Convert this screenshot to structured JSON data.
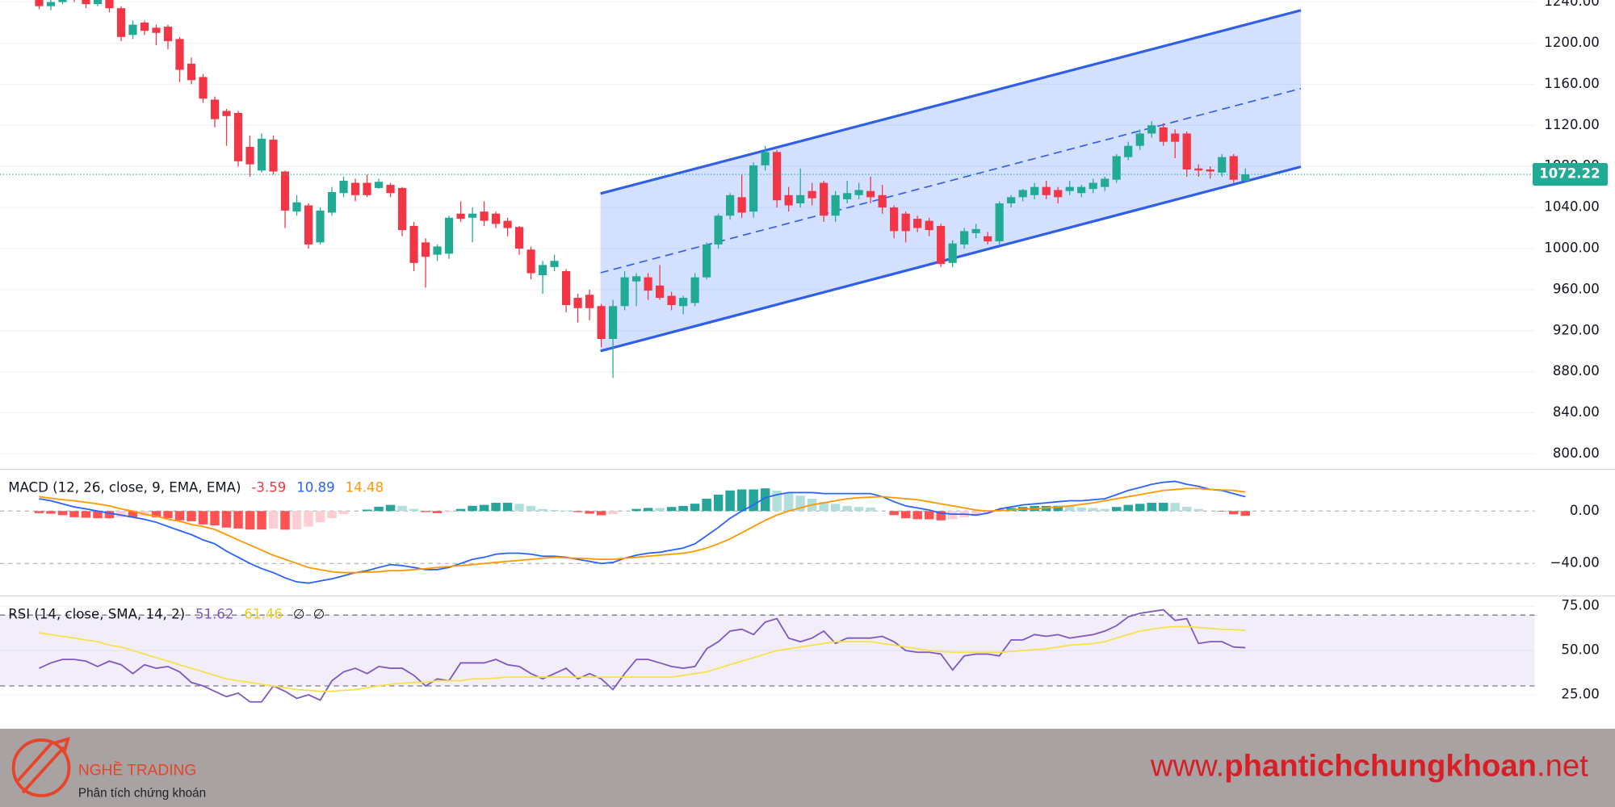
{
  "chart_data": [
    {
      "type": "candlestick",
      "up_color": "#22ab94",
      "down_color": "#f23645",
      "grid": true,
      "ylim": [
        786,
        1242
      ],
      "yticks": [
        {
          "value": 800,
          "label": "800.00"
        },
        {
          "value": 840,
          "label": "840.00"
        },
        {
          "value": 880,
          "label": "880.00"
        },
        {
          "value": 920,
          "label": "920.00"
        },
        {
          "value": 960,
          "label": "960.00"
        },
        {
          "value": 1000,
          "label": "1000.00"
        },
        {
          "value": 1040,
          "label": "1040.00"
        },
        {
          "value": 1080,
          "label": "1080.00"
        },
        {
          "value": 1120,
          "label": "1120.00"
        },
        {
          "value": 1160,
          "label": "1160.00"
        },
        {
          "value": 1200,
          "label": "1200.00"
        },
        {
          "value": 1240,
          "label": "1240.00"
        }
      ],
      "open": [
        1242,
        1236,
        1240,
        1250,
        1242,
        1238,
        1242,
        1234,
        1208,
        1220,
        1215,
        1216,
        1204,
        1180,
        1167,
        1145,
        1134,
        1132,
        1099,
        1076,
        1106,
        1075,
        1036,
        1042,
        1006,
        1035,
        1054,
        1064,
        1064,
        1059,
        1062,
        1059,
        1022,
        1006,
        994,
        995,
        1034,
        1030,
        1036,
        1034,
        1027,
        1021,
        999,
        974,
        982,
        978,
        952,
        955,
        944,
        912,
        944,
        968,
        972,
        964,
        954,
        944,
        947,
        972,
        1004,
        1032,
        1050,
        1036,
        1081,
        1094,
        1052,
        1044,
        1056,
        1064,
        1032,
        1048,
        1052,
        1056,
        1052,
        1040,
        1034,
        1029,
        1027,
        1022,
        986,
        1004,
        1015,
        1012,
        1007,
        1044,
        1050,
        1052,
        1060,
        1057,
        1056,
        1054,
        1058,
        1060,
        1067,
        1089,
        1100,
        1112,
        1118,
        1112,
        1112,
        1078,
        1077,
        1074,
        1090,
        1066
      ],
      "high": [
        1245,
        1244,
        1255,
        1252,
        1245,
        1245,
        1244,
        1236,
        1222,
        1222,
        1218,
        1218,
        1206,
        1186,
        1170,
        1148,
        1136,
        1134,
        1110,
        1112,
        1110,
        1076,
        1052,
        1044,
        1040,
        1060,
        1070,
        1068,
        1072,
        1068,
        1064,
        1060,
        1026,
        1010,
        1004,
        1032,
        1046,
        1040,
        1046,
        1036,
        1030,
        1022,
        1002,
        988,
        994,
        980,
        956,
        960,
        946,
        950,
        978,
        976,
        976,
        984,
        958,
        954,
        976,
        1006,
        1034,
        1054,
        1072,
        1084,
        1100,
        1096,
        1060,
        1078,
        1064,
        1066,
        1056,
        1066,
        1064,
        1070,
        1062,
        1042,
        1036,
        1032,
        1030,
        1024,
        1008,
        1020,
        1024,
        1016,
        1046,
        1052,
        1058,
        1064,
        1066,
        1060,
        1066,
        1062,
        1068,
        1070,
        1092,
        1104,
        1116,
        1124,
        1122,
        1116,
        1114,
        1082,
        1080,
        1092,
        1092,
        1078
      ],
      "low": [
        1233,
        1232,
        1238,
        1240,
        1234,
        1236,
        1230,
        1202,
        1204,
        1208,
        1198,
        1194,
        1162,
        1160,
        1142,
        1118,
        1100,
        1080,
        1070,
        1074,
        1072,
        1020,
        1032,
        1000,
        1004,
        1032,
        1050,
        1046,
        1050,
        1058,
        1050,
        1012,
        978,
        962,
        988,
        990,
        1026,
        1006,
        1022,
        1020,
        1012,
        994,
        970,
        956,
        978,
        938,
        928,
        930,
        904,
        874,
        940,
        944,
        950,
        950,
        940,
        936,
        944,
        970,
        1000,
        1028,
        1030,
        1030,
        1076,
        1040,
        1036,
        1040,
        1042,
        1026,
        1026,
        1044,
        1048,
        1044,
        1034,
        1010,
        1006,
        1016,
        1012,
        982,
        982,
        1000,
        1010,
        1004,
        1004,
        1040,
        1046,
        1048,
        1048,
        1044,
        1052,
        1050,
        1054,
        1056,
        1064,
        1086,
        1096,
        1108,
        1100,
        1088,
        1070,
        1070,
        1068,
        1070,
        1064,
        1064
      ],
      "close": [
        1236,
        1240,
        1250,
        1244,
        1238,
        1242,
        1234,
        1206,
        1218,
        1212,
        1210,
        1202,
        1174,
        1164,
        1146,
        1126,
        1129,
        1085,
        1082,
        1107,
        1075,
        1037,
        1045,
        1004,
        1037,
        1055,
        1066,
        1052,
        1052,
        1065,
        1054,
        1018,
        986,
        992,
        1002,
        1030,
        1029,
        1034,
        1027,
        1024,
        1020,
        1000,
        976,
        984,
        988,
        945,
        942,
        942,
        912,
        944,
        972,
        973,
        959,
        952,
        945,
        952,
        972,
        1004,
        1032,
        1052,
        1035,
        1081,
        1094,
        1047,
        1042,
        1052,
        1049,
        1032,
        1052,
        1054,
        1057,
        1050,
        1040,
        1017,
        1017,
        1020,
        1018,
        985,
        1005,
        1017,
        1019,
        1007,
        1044,
        1050,
        1057,
        1060,
        1052,
        1050,
        1060,
        1060,
        1064,
        1068,
        1090,
        1100,
        1112,
        1120,
        1104,
        1104,
        1077,
        1076,
        1075,
        1089,
        1067,
        1072.22
      ]
    },
    {
      "type": "indicator",
      "title": "MACD (12, 26, close, 9, EMA, EMA)",
      "ylim": [
        -64,
        31
      ],
      "yticks": [
        {
          "value": 0,
          "label": "0.00"
        },
        {
          "value": -40,
          "label": "−40.00"
        }
      ],
      "series": [
        {
          "name": "Histogram",
          "type": "histogram",
          "color": "#f23645",
          "colors": {
            "up_strong": "#26a69a",
            "up_weak": "#b2dfdb",
            "down_strong": "#ff5252",
            "down_weak": "#ffcdd2"
          },
          "values": [
            -1.6,
            -2,
            -3.1,
            -4.7,
            -5.1,
            -5.5,
            -5.5,
            -4.7,
            -4.7,
            -3.9,
            -4.7,
            -5.5,
            -7.1,
            -7.8,
            -10.2,
            -10.9,
            -12.6,
            -13.3,
            -14.1,
            -14.1,
            -13.3,
            -14.2,
            -14,
            -11.9,
            -8.6,
            -5.4,
            -2.4,
            0,
            1.1,
            3.3,
            4.7,
            3.9,
            1.7,
            -0.8,
            -1.6,
            -0.7,
            1.6,
            4,
            4.7,
            6.3,
            6.3,
            5.5,
            3.9,
            1.5,
            0.8,
            0.4,
            -0.8,
            -2,
            -3.2,
            -2.4,
            0,
            1.6,
            2.4,
            2.3,
            3.1,
            3.9,
            5.6,
            9.4,
            12.5,
            15.7,
            16.5,
            16.5,
            17.3,
            15.6,
            14.1,
            11.7,
            9.4,
            7,
            5.5,
            3.9,
            3.1,
            2.7,
            0,
            -3.1,
            -5.5,
            -6.2,
            -6.3,
            -7.1,
            -6.3,
            -4.8,
            -3.9,
            -1.6,
            1.2,
            2.3,
            3.1,
            3.9,
            3.9,
            4,
            3.9,
            2.7,
            2.3,
            1.6,
            3.1,
            4.7,
            5.5,
            6.3,
            6.3,
            6.2,
            3.2,
            1.6,
            0,
            -0.4,
            -2.4,
            -3.59
          ]
        },
        {
          "name": "MACD",
          "type": "line",
          "color": "#2962ff",
          "values": [
            9.4,
            7.8,
            5.5,
            3.1,
            1.6,
            0,
            -1.6,
            -3.1,
            -4.7,
            -6.3,
            -8.6,
            -11.8,
            -14.9,
            -18,
            -22,
            -25,
            -30.6,
            -35.3,
            -40,
            -43.9,
            -47,
            -51,
            -54,
            -55,
            -53.3,
            -51.7,
            -49.4,
            -47,
            -45.5,
            -43,
            -40.8,
            -41.6,
            -43,
            -44.7,
            -44.7,
            -43,
            -40,
            -36.8,
            -35.3,
            -32.9,
            -32.1,
            -32.1,
            -32.9,
            -34.5,
            -34.5,
            -35.3,
            -36.8,
            -38.4,
            -40,
            -39.2,
            -36,
            -33.7,
            -32.1,
            -31.4,
            -29.8,
            -28.2,
            -25,
            -18.8,
            -12.5,
            -5.5,
            0,
            4.7,
            10.2,
            12.5,
            14.1,
            14.1,
            14.1,
            13.3,
            13.3,
            13.3,
            13.3,
            13.3,
            11,
            7.1,
            3.9,
            2.4,
            0.8,
            -1.6,
            -2.4,
            -2.4,
            -3.1,
            -1.6,
            1.6,
            3.1,
            4.7,
            5.5,
            6.3,
            7.1,
            7.8,
            7.8,
            8.6,
            9.4,
            12.5,
            15.7,
            18,
            20.4,
            22,
            22.7,
            20.4,
            18.8,
            16.5,
            15.7,
            13.3,
            10.89
          ]
        },
        {
          "name": "Signal",
          "type": "line",
          "color": "#ff9800",
          "values": [
            11,
            9.8,
            8.6,
            7.8,
            6.7,
            5.5,
            3.9,
            1.6,
            0,
            -2.4,
            -3.9,
            -6.3,
            -7.8,
            -10.2,
            -11.8,
            -14.1,
            -18,
            -22,
            -25.9,
            -29.8,
            -33.7,
            -36.8,
            -40,
            -43.1,
            -44.7,
            -46.3,
            -47,
            -47,
            -46.6,
            -46.3,
            -45.5,
            -45.5,
            -44.7,
            -43.9,
            -43.1,
            -42.3,
            -41.6,
            -40.8,
            -40,
            -39.2,
            -38.4,
            -37.6,
            -36.8,
            -36,
            -35.3,
            -35.7,
            -36,
            -36.4,
            -36.8,
            -36.8,
            -36,
            -35.3,
            -34.5,
            -33.7,
            -32.9,
            -32.1,
            -30.6,
            -28.2,
            -25,
            -21.2,
            -16.5,
            -11.8,
            -7.1,
            -3.1,
            0,
            2.4,
            4.7,
            6.3,
            7.8,
            9.4,
            10.2,
            10.6,
            11,
            10.2,
            9.4,
            8.6,
            7.1,
            5.5,
            3.9,
            2.4,
            0.8,
            0,
            0.4,
            0.8,
            1.6,
            1.6,
            2.4,
            3.1,
            3.9,
            5.1,
            6.3,
            7.8,
            9.4,
            11,
            12.5,
            14.1,
            15.7,
            16.5,
            17.2,
            17.2,
            16.5,
            16.1,
            15.7,
            14.48
          ]
        }
      ]
    },
    {
      "type": "indicator",
      "title": "RSI (14, close, SMA, 14, 2)",
      "ylim": [
        10.5,
        80.2
      ],
      "band": [
        30,
        70
      ],
      "band_color": "#7e57c2",
      "yticks": [
        {
          "value": 25,
          "label": "25.00"
        },
        {
          "value": 50,
          "label": "50.00"
        },
        {
          "value": 75,
          "label": "75.00"
        }
      ],
      "extra_labels": [
        "∅",
        "∅"
      ],
      "series": [
        {
          "name": "RSI",
          "type": "line",
          "color": "#7e57c2",
          "values": [
            40,
            43,
            45,
            45,
            44,
            41,
            44,
            42,
            37,
            42,
            40,
            41,
            38,
            32,
            30,
            27,
            24,
            26,
            21,
            21,
            30,
            27,
            23,
            25,
            22,
            33,
            38,
            40,
            37,
            41,
            40,
            40,
            36,
            30,
            34,
            33,
            43,
            43,
            43,
            45,
            42,
            41,
            37,
            34,
            37,
            40,
            34,
            37,
            34,
            28,
            37,
            45,
            45,
            43,
            41,
            40,
            41,
            51,
            55,
            61,
            62,
            59,
            66,
            68,
            57,
            55,
            57,
            61,
            54,
            57,
            57,
            57,
            58,
            55,
            50,
            49,
            49,
            48,
            39,
            47,
            48,
            48,
            47,
            56,
            56,
            59,
            58,
            59,
            57,
            58,
            59,
            61,
            64,
            69,
            71,
            72,
            73,
            67,
            68,
            54,
            55,
            55,
            52,
            51.62
          ]
        },
        {
          "name": "RSI SMA",
          "type": "line",
          "color": "#f7e04b",
          "values": [
            60,
            59,
            58,
            57,
            56,
            55,
            53,
            52,
            50,
            48,
            46,
            44,
            42,
            40,
            38,
            36,
            34,
            33,
            32,
            31,
            30,
            29,
            28,
            27.5,
            27,
            27,
            27.5,
            28,
            29,
            30,
            31,
            31.5,
            32,
            32,
            33,
            33,
            33,
            34,
            34,
            34.5,
            35,
            35,
            35,
            35,
            35,
            35,
            35,
            35,
            35,
            35,
            35,
            35,
            35,
            35,
            35,
            36,
            37,
            38,
            40,
            42,
            44,
            46,
            48,
            50,
            51,
            52,
            53,
            54,
            55,
            55,
            55,
            55,
            54,
            53,
            52,
            51,
            50,
            49.5,
            49,
            49,
            49,
            49,
            49,
            49.5,
            50,
            50.5,
            51,
            52,
            53,
            53.5,
            54,
            55,
            57,
            59,
            61,
            62,
            63,
            63.5,
            63.5,
            63,
            62.5,
            62,
            61.8,
            61.46
          ]
        }
      ]
    }
  ],
  "footer": {
    "brand": "NGHỀ TRADING",
    "tagline": "Phân tích chứng khoán",
    "url": [
      "www.",
      "phantichchungkhoan",
      ".net"
    ]
  }
}
